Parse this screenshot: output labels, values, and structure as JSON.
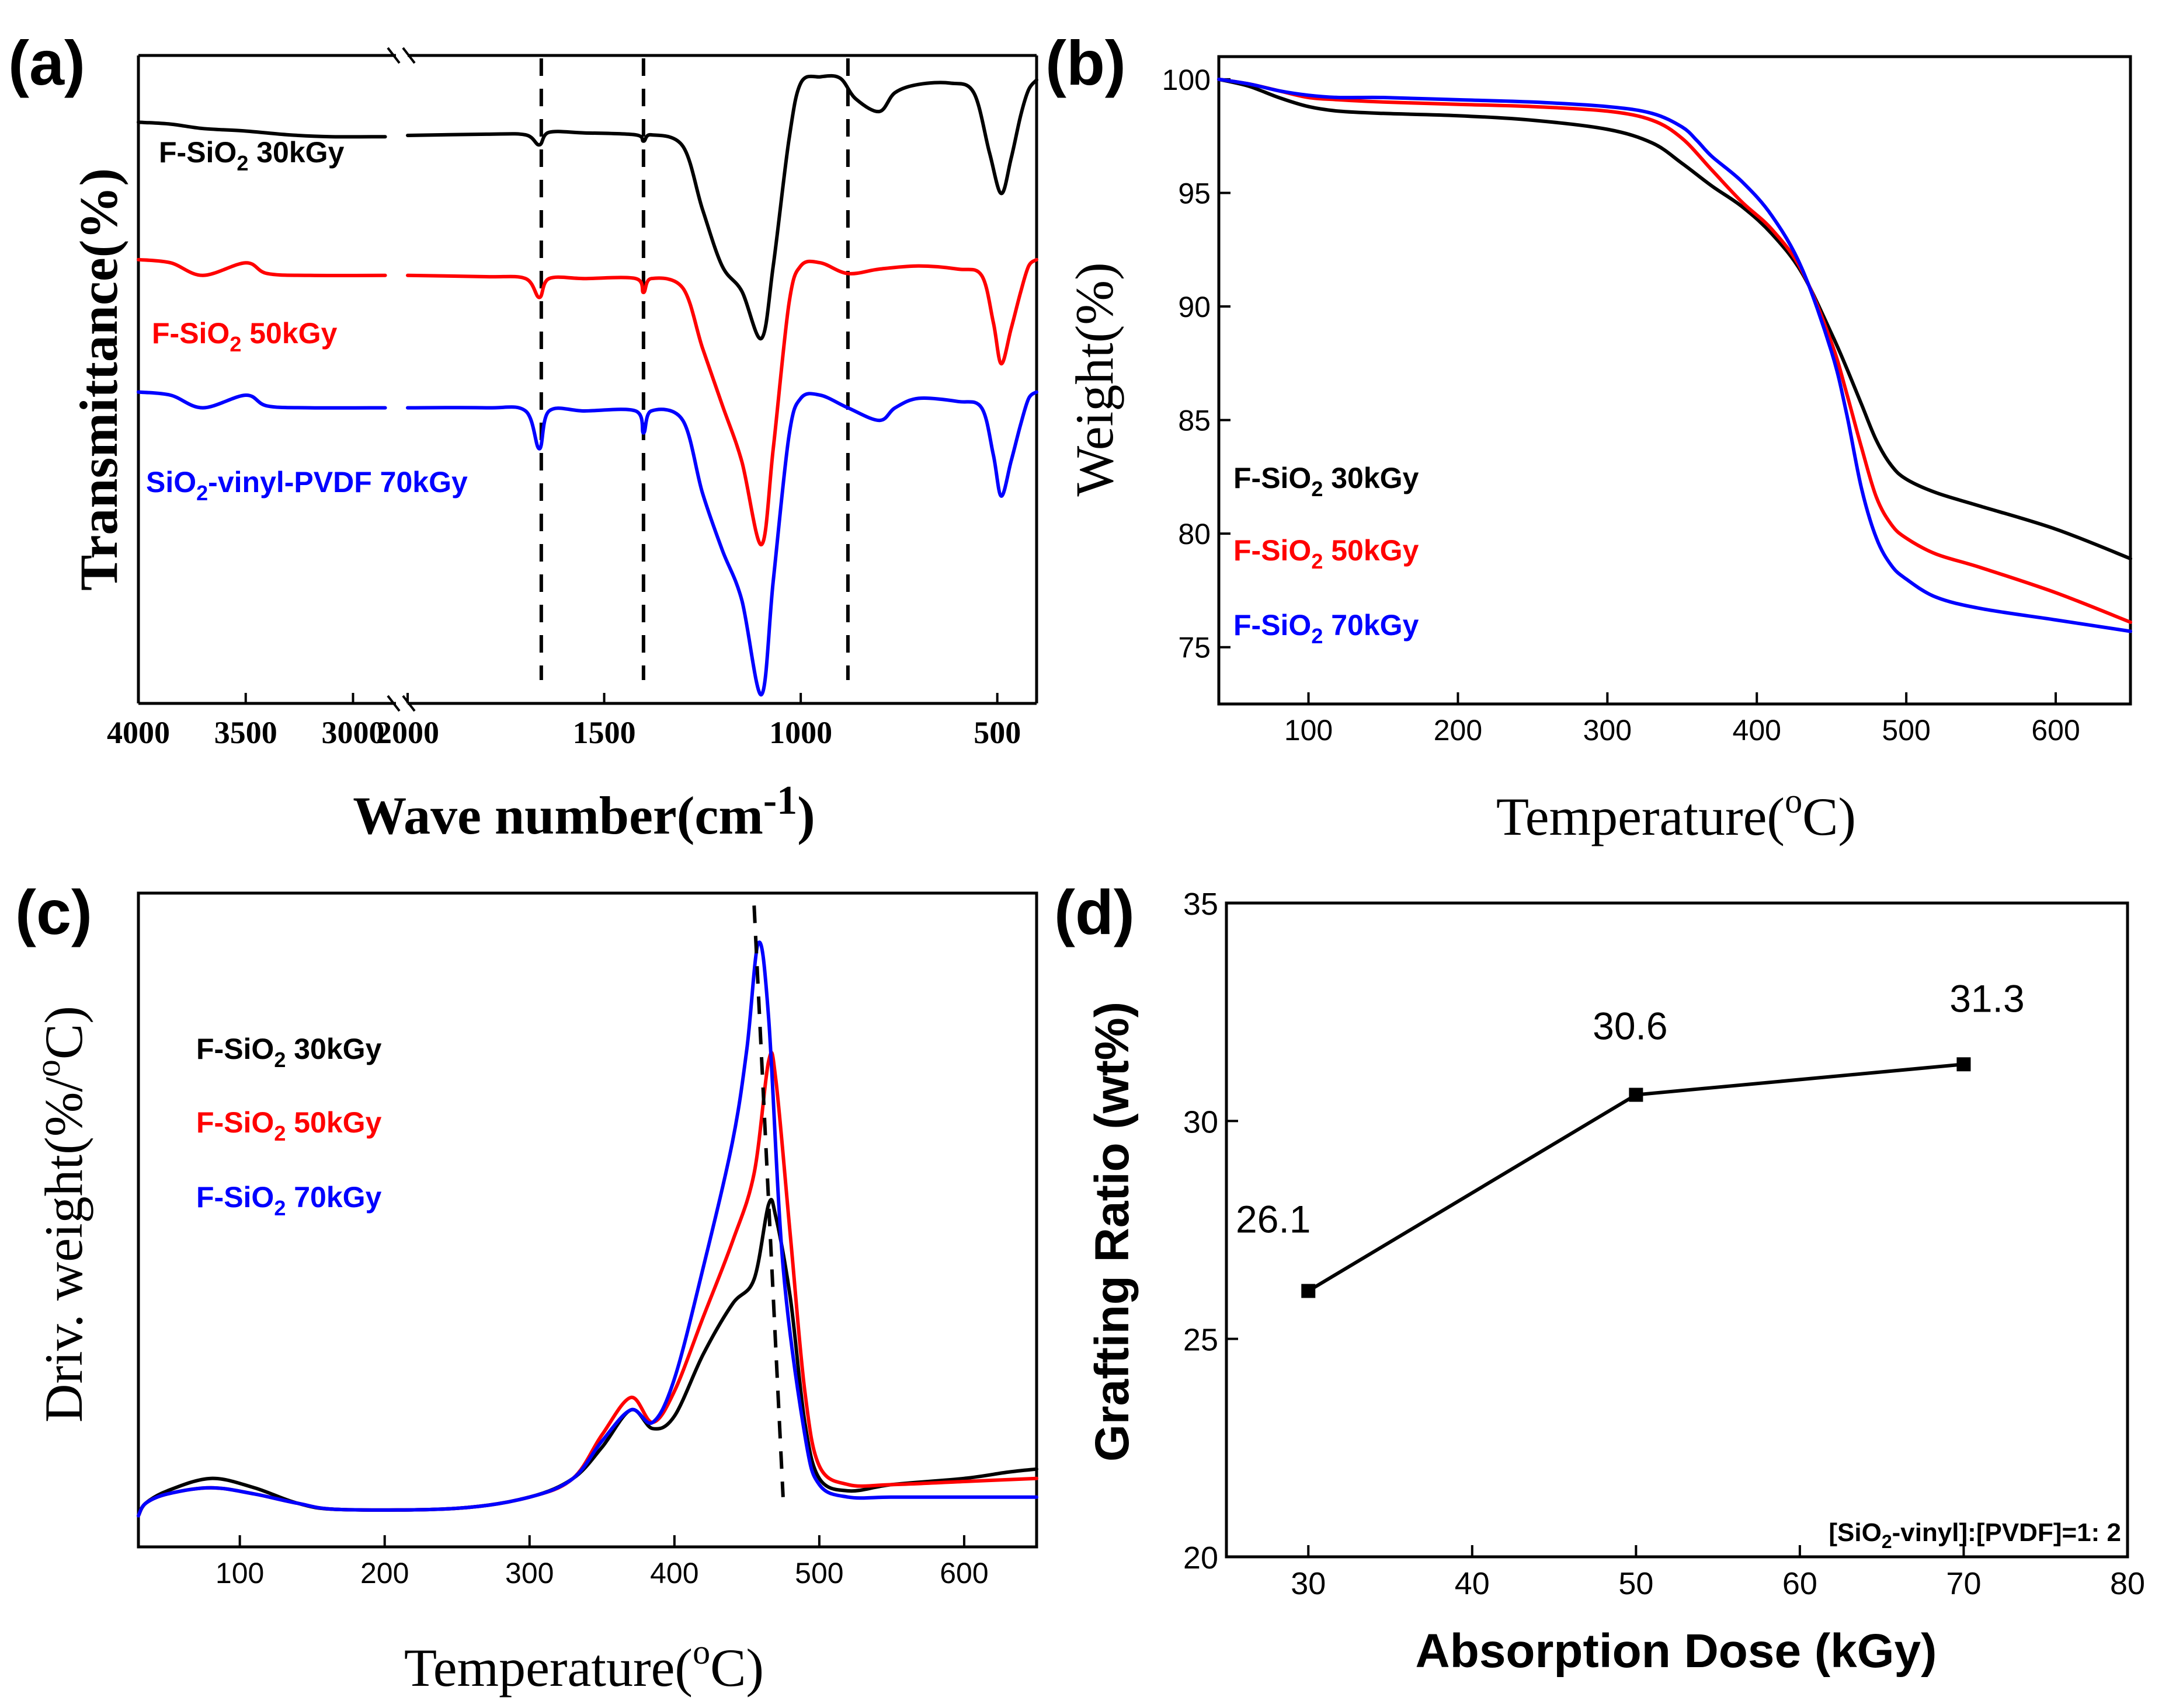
{
  "colors": {
    "black": "#000000",
    "red": "#ff0000",
    "blue": "#0000ff"
  },
  "chart_data": [
    {
      "panel_label": "(a)",
      "type": "line",
      "title": "",
      "xlabel_main": "Wave number(cm",
      "xlabel_sup": "-1",
      "xlabel_close": ")",
      "ylabel": "Transmittance(%)",
      "x_break": [
        3000,
        2000
      ],
      "xlim_left": [
        4000,
        2800
      ],
      "xlim_right": [
        2000,
        400
      ],
      "x_tick_labels_left": [
        "4000",
        "3500",
        "3000"
      ],
      "x_tick_values_left": [
        4000,
        3500,
        3000
      ],
      "x_tick_labels_right": [
        "2000",
        "1500",
        "1000",
        "500"
      ],
      "x_tick_values_right": [
        2000,
        1500,
        1000,
        500
      ],
      "dashed_lines_x": [
        1660,
        1400,
        880
      ],
      "series": [
        {
          "name": "F-SiO2 30kGy",
          "label_main": "F-SiO",
          "label_sub": "2",
          "label_rest": " 30kGy",
          "color": "#000000",
          "baseline": 0.0,
          "points": [
            [
              4000,
              0.92
            ],
            [
              3850,
              0.95
            ],
            [
              3700,
              1.02
            ],
            [
              3500,
              1.06
            ],
            [
              3300,
              1.12
            ],
            [
              3100,
              1.15
            ],
            [
              2850,
              1.15
            ],
            [
              2000,
              1.13
            ],
            [
              1800,
              1.11
            ],
            [
              1700,
              1.12
            ],
            [
              1665,
              1.28
            ],
            [
              1640,
              1.08
            ],
            [
              1550,
              1.09
            ],
            [
              1420,
              1.12
            ],
            [
              1400,
              1.22
            ],
            [
              1380,
              1.12
            ],
            [
              1300,
              1.3
            ],
            [
              1250,
              2.3
            ],
            [
              1200,
              3.2
            ],
            [
              1150,
              3.6
            ],
            [
              1100,
              4.35
            ],
            [
              1070,
              3.2
            ],
            [
              1030,
              1.2
            ],
            [
              1000,
              0.3
            ],
            [
              950,
              0.2
            ],
            [
              900,
              0.22
            ],
            [
              860,
              0.55
            ],
            [
              800,
              0.75
            ],
            [
              760,
              0.45
            ],
            [
              700,
              0.32
            ],
            [
              620,
              0.3
            ],
            [
              560,
              0.45
            ],
            [
              520,
              1.4
            ],
            [
              490,
              2.05
            ],
            [
              465,
              1.5
            ],
            [
              440,
              0.8
            ],
            [
              420,
              0.4
            ],
            [
              400,
              0.25
            ]
          ]
        },
        {
          "name": "F-SiO2 50kGy",
          "label_main": "F-SiO",
          "label_sub": "2",
          "label_rest": " 50kGy",
          "color": "#ff0000",
          "baseline": 3.1,
          "points": [
            [
              4000,
              0.0
            ],
            [
              3850,
              0.05
            ],
            [
              3700,
              0.25
            ],
            [
              3500,
              0.05
            ],
            [
              3400,
              0.22
            ],
            [
              3200,
              0.25
            ],
            [
              2850,
              0.25
            ],
            [
              2000,
              0.25
            ],
            [
              1800,
              0.27
            ],
            [
              1700,
              0.3
            ],
            [
              1665,
              0.6
            ],
            [
              1640,
              0.3
            ],
            [
              1550,
              0.3
            ],
            [
              1420,
              0.3
            ],
            [
              1400,
              0.52
            ],
            [
              1380,
              0.3
            ],
            [
              1300,
              0.45
            ],
            [
              1250,
              1.4
            ],
            [
              1200,
              2.3
            ],
            [
              1150,
              3.2
            ],
            [
              1100,
              4.52
            ],
            [
              1070,
              3.0
            ],
            [
              1030,
              0.7
            ],
            [
              1000,
              0.1
            ],
            [
              950,
              0.05
            ],
            [
              880,
              0.22
            ],
            [
              800,
              0.15
            ],
            [
              700,
              0.1
            ],
            [
              600,
              0.15
            ],
            [
              540,
              0.25
            ],
            [
              510,
              1.0
            ],
            [
              490,
              1.65
            ],
            [
              465,
              1.1
            ],
            [
              440,
              0.5
            ],
            [
              420,
              0.1
            ],
            [
              400,
              0.0
            ]
          ]
        },
        {
          "name": "SiO2-vinyl-PVDF 70kGy",
          "label_main": "SiO",
          "label_sub": "2",
          "label_rest": "-vinyl-PVDF 70kGy",
          "color": "#0000ff",
          "baseline": 5.2,
          "points": [
            [
              4000,
              0.0
            ],
            [
              3850,
              0.05
            ],
            [
              3700,
              0.25
            ],
            [
              3500,
              0.05
            ],
            [
              3400,
              0.22
            ],
            [
              3200,
              0.25
            ],
            [
              2850,
              0.25
            ],
            [
              2000,
              0.25
            ],
            [
              1800,
              0.25
            ],
            [
              1700,
              0.3
            ],
            [
              1665,
              0.9
            ],
            [
              1640,
              0.3
            ],
            [
              1550,
              0.3
            ],
            [
              1420,
              0.3
            ],
            [
              1400,
              0.65
            ],
            [
              1380,
              0.3
            ],
            [
              1300,
              0.45
            ],
            [
              1250,
              1.6
            ],
            [
              1200,
              2.5
            ],
            [
              1150,
              3.3
            ],
            [
              1100,
              4.8
            ],
            [
              1070,
              3.0
            ],
            [
              1030,
              0.7
            ],
            [
              1000,
              0.1
            ],
            [
              950,
              0.05
            ],
            [
              880,
              0.25
            ],
            [
              800,
              0.45
            ],
            [
              760,
              0.25
            ],
            [
              700,
              0.1
            ],
            [
              600,
              0.15
            ],
            [
              540,
              0.25
            ],
            [
              510,
              1.0
            ],
            [
              490,
              1.65
            ],
            [
              465,
              1.1
            ],
            [
              440,
              0.5
            ],
            [
              420,
              0.1
            ],
            [
              400,
              0.0
            ]
          ]
        }
      ]
    },
    {
      "panel_label": "(b)",
      "type": "line",
      "title": "",
      "xlabel_main": "Temperature(",
      "xlabel_sup": "o",
      "xlabel_close": "C)",
      "ylabel": "Weight(%)",
      "xlim": [
        40,
        650
      ],
      "ylim": [
        72.5,
        101
      ],
      "x_tick_labels": [
        "100",
        "200",
        "300",
        "400",
        "500",
        "600"
      ],
      "x_tick_values": [
        100,
        200,
        300,
        400,
        500,
        600
      ],
      "y_tick_labels": [
        "75",
        "80",
        "85",
        "90",
        "95",
        "100"
      ],
      "y_tick_values": [
        75,
        80,
        85,
        90,
        95,
        100
      ],
      "series": [
        {
          "name": "F-SiO2 30kGy",
          "label_main": "F-SiO",
          "label_sub": "2",
          "label_rest": " 30kGy",
          "color": "#000000",
          "x": [
            40,
            60,
            80,
            100,
            120,
            150,
            200,
            250,
            300,
            330,
            350,
            370,
            390,
            410,
            430,
            450,
            460,
            470,
            480,
            490,
            500,
            520,
            550,
            600,
            650
          ],
          "y": [
            100,
            99.7,
            99.2,
            98.8,
            98.6,
            98.5,
            98.4,
            98.2,
            97.8,
            97.2,
            96.3,
            95.3,
            94.4,
            93.2,
            91.5,
            88.8,
            87.3,
            85.7,
            84.1,
            83.0,
            82.4,
            81.8,
            81.2,
            80.2,
            78.9
          ]
        },
        {
          "name": "F-SiO2 50kGy",
          "label_main": "F-SiO",
          "label_sub": "2",
          "label_rest": " 50kGy",
          "color": "#ff0000",
          "x": [
            40,
            60,
            80,
            100,
            120,
            150,
            200,
            250,
            300,
            330,
            350,
            370,
            390,
            410,
            430,
            450,
            460,
            470,
            480,
            490,
            500,
            520,
            550,
            600,
            650
          ],
          "y": [
            100,
            99.8,
            99.5,
            99.2,
            99.1,
            99.0,
            98.9,
            98.8,
            98.6,
            98.2,
            97.4,
            96.0,
            94.6,
            93.4,
            91.6,
            88.4,
            86.2,
            83.8,
            81.6,
            80.4,
            79.8,
            79.1,
            78.5,
            77.4,
            76.1
          ]
        },
        {
          "name": "F-SiO2 70kGy",
          "label_main": "F-SiO",
          "label_sub": "2",
          "label_rest": " 70kGy",
          "color": "#0000ff",
          "x": [
            40,
            60,
            80,
            100,
            120,
            150,
            200,
            250,
            300,
            330,
            350,
            360,
            370,
            390,
            410,
            430,
            450,
            460,
            470,
            480,
            490,
            500,
            520,
            550,
            600,
            650
          ],
          "y": [
            100,
            99.8,
            99.5,
            99.3,
            99.2,
            99.2,
            99.1,
            99.0,
            98.8,
            98.5,
            97.9,
            97.3,
            96.6,
            95.5,
            94.0,
            91.7,
            88.0,
            85.3,
            82.0,
            79.8,
            78.6,
            78.0,
            77.2,
            76.7,
            76.2,
            75.7
          ]
        }
      ]
    },
    {
      "panel_label": "(c)",
      "type": "line",
      "title": "",
      "xlabel_main": "Temperature(",
      "xlabel_sup": "o",
      "xlabel_close": "C)",
      "ylabel": "Driv. weight(%/oC)",
      "ylabel_main": "Driv. weight(%/",
      "ylabel_sup": "o",
      "ylabel_close": "C)",
      "xlim": [
        30,
        650
      ],
      "ylim": [
        -0.05,
        1.0
      ],
      "x_tick_labels": [
        "100",
        "200",
        "300",
        "400",
        "500",
        "600"
      ],
      "x_tick_values": [
        100,
        200,
        300,
        400,
        500,
        600
      ],
      "dashed_line": [
        [
          455,
          0.98
        ],
        [
          475,
          0.03
        ]
      ],
      "series": [
        {
          "name": "F-SiO2 30kGy",
          "label_main": "F-SiO",
          "label_sub": "2",
          "label_rest": " 30kGy",
          "color": "#000000",
          "x": [
            30,
            35,
            50,
            80,
            110,
            140,
            170,
            250,
            300,
            330,
            350,
            370,
            385,
            400,
            420,
            440,
            455,
            465,
            470,
            480,
            490,
            500,
            520,
            550,
            600,
            630,
            650
          ],
          "y": [
            0.0,
            0.02,
            0.04,
            0.06,
            0.045,
            0.02,
            0.01,
            0.012,
            0.03,
            0.06,
            0.11,
            0.17,
            0.14,
            0.16,
            0.26,
            0.34,
            0.38,
            0.5,
            0.48,
            0.35,
            0.15,
            0.06,
            0.04,
            0.05,
            0.06,
            0.07,
            0.075
          ]
        },
        {
          "name": "F-SiO2 50kGy",
          "label_main": "F-SiO",
          "label_sub": "2",
          "label_rest": " 50kGy",
          "color": "#ff0000",
          "x": [
            30,
            35,
            50,
            80,
            110,
            140,
            170,
            250,
            300,
            330,
            350,
            370,
            385,
            400,
            420,
            440,
            455,
            465,
            470,
            480,
            490,
            500,
            520,
            550,
            600,
            650
          ],
          "y": [
            0.0,
            0.02,
            0.035,
            0.045,
            0.035,
            0.02,
            0.01,
            0.012,
            0.03,
            0.06,
            0.13,
            0.19,
            0.15,
            0.2,
            0.32,
            0.44,
            0.55,
            0.73,
            0.7,
            0.45,
            0.2,
            0.08,
            0.05,
            0.05,
            0.055,
            0.06
          ]
        },
        {
          "name": "F-SiO2 70kGy",
          "label_main": "F-SiO",
          "label_sub": "2",
          "label_rest": " 70kGy",
          "color": "#0000ff",
          "x": [
            30,
            35,
            50,
            80,
            110,
            140,
            170,
            250,
            300,
            330,
            350,
            370,
            385,
            400,
            420,
            440,
            450,
            458,
            465,
            475,
            490,
            500,
            520,
            550,
            600,
            650
          ],
          "y": [
            0.0,
            0.02,
            0.035,
            0.045,
            0.035,
            0.02,
            0.01,
            0.012,
            0.03,
            0.06,
            0.12,
            0.17,
            0.15,
            0.22,
            0.4,
            0.6,
            0.75,
            0.92,
            0.8,
            0.4,
            0.13,
            0.05,
            0.03,
            0.03,
            0.03,
            0.03
          ]
        }
      ]
    },
    {
      "panel_label": "(d)",
      "type": "line",
      "title": "",
      "xlabel": "Absorption Dose (kGy)",
      "ylabel": "Grafting Ratio (wt%)",
      "xlim": [
        25,
        80
      ],
      "ylim": [
        20,
        35
      ],
      "x_tick_labels": [
        "30",
        "40",
        "50",
        "60",
        "70",
        "80"
      ],
      "x_tick_values": [
        30,
        40,
        50,
        60,
        70,
        80
      ],
      "y_tick_labels": [
        "20",
        "25",
        "30",
        "35"
      ],
      "y_tick_values": [
        20,
        25,
        30,
        35
      ],
      "annotation_main": "[SiO",
      "annotation_sub": "2",
      "annotation_rest": "-vinyl]:[PVDF]=1: 2",
      "series": [
        {
          "name": "Grafting ratio",
          "color": "#000000",
          "x": [
            30,
            50,
            70
          ],
          "y": [
            26.1,
            30.6,
            31.3
          ],
          "labels": [
            "26.1",
            "30.6",
            "31.3"
          ]
        }
      ]
    }
  ]
}
